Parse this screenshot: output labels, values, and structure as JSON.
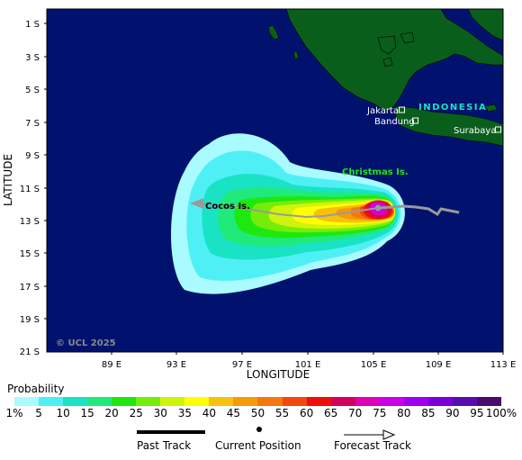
{
  "map": {
    "axes": {
      "y_title": "LATITUDE",
      "x_title": "LONGITUDE",
      "lat_ticks": [
        "1 S",
        "3 S",
        "5 S",
        "7 S",
        "9 S",
        "11 S",
        "13 S",
        "15 S",
        "17 S",
        "19 S",
        "21 S"
      ],
      "lon_ticks": [
        "89 E",
        "93 E",
        "97 E",
        "101 E",
        "105 E",
        "109 E",
        "113 E"
      ]
    },
    "places": {
      "country": "INDONESIA",
      "jakarta": "Jakarta",
      "bandung": "Bandung",
      "surabaya": "Surabaya",
      "christmas": "Christmas Is.",
      "cocos": "Cocos Is."
    },
    "copyright": "© UCL 2025",
    "colors": {
      "ocean": "#00126e",
      "land": "#0a5e1c"
    }
  },
  "legend": {
    "title": "Probability",
    "colors": [
      "#a9fbff",
      "#4ff0f5",
      "#19e3c3",
      "#1fea7a",
      "#1ee80d",
      "#76ec0a",
      "#cff30a",
      "#fefe05",
      "#f7c20c",
      "#f59b0a",
      "#f4780d",
      "#f2480d",
      "#ee0f0d",
      "#d2005c",
      "#e000b7",
      "#cc00e6",
      "#a100f0",
      "#7a00d8",
      "#5a0bb0",
      "#4a0a6e"
    ],
    "ticks": [
      "1%",
      "5",
      "10",
      "15",
      "20",
      "25",
      "30",
      "35",
      "40",
      "45",
      "50",
      "55",
      "60",
      "65",
      "70",
      "75",
      "80",
      "85",
      "90",
      "95",
      "100%"
    ],
    "past_track": "Past Track",
    "current_position": "Current Position",
    "forecast_track": "Forecast Track"
  }
}
